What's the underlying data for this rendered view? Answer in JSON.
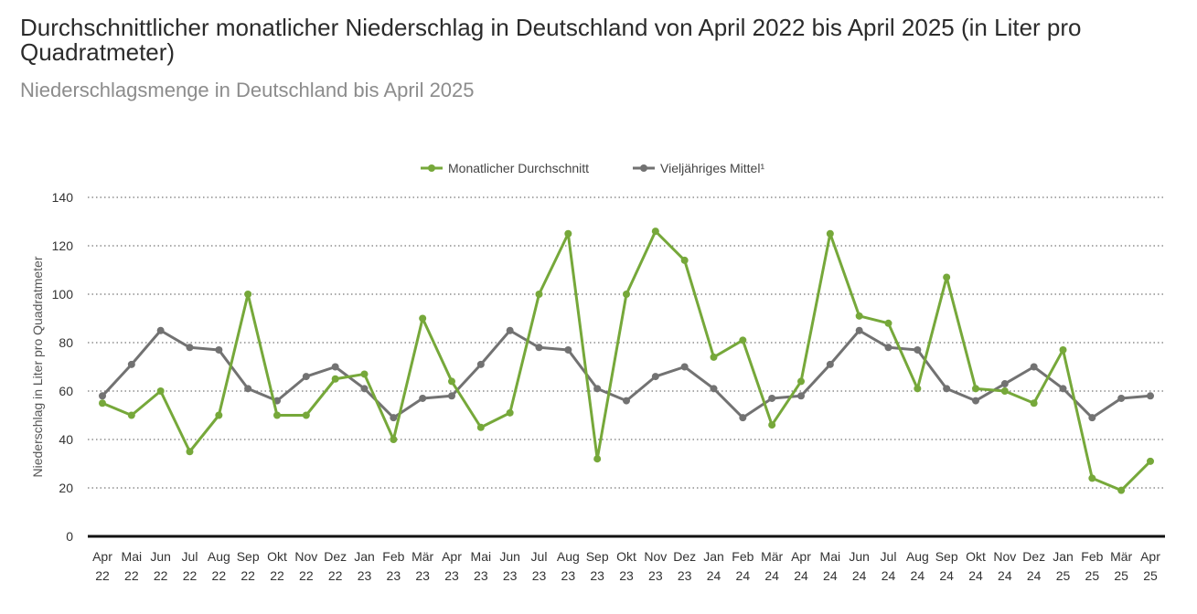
{
  "title": "Durchschnittlicher monatlicher Niederschlag in Deutschland von April 2022 bis April 2025 (in Liter pro Quadratmeter)",
  "subtitle": "Niederschlagsmenge in Deutschland bis April 2025",
  "chart_data": {
    "type": "line",
    "ylabel": "Niederschlag in Liter pro Quadratmeter",
    "ylim": [
      0,
      140
    ],
    "yticks": [
      0,
      20,
      40,
      60,
      80,
      100,
      120,
      140
    ],
    "grid": true,
    "legend_position": "top-center",
    "categories": [
      [
        "Apr",
        "22"
      ],
      [
        "Mai",
        "22"
      ],
      [
        "Jun",
        "22"
      ],
      [
        "Jul",
        "22"
      ],
      [
        "Aug",
        "22"
      ],
      [
        "Sep",
        "22"
      ],
      [
        "Okt",
        "22"
      ],
      [
        "Nov",
        "22"
      ],
      [
        "Dez",
        "22"
      ],
      [
        "Jan",
        "23"
      ],
      [
        "Feb",
        "23"
      ],
      [
        "Mär",
        "23"
      ],
      [
        "Apr",
        "23"
      ],
      [
        "Mai",
        "23"
      ],
      [
        "Jun",
        "23"
      ],
      [
        "Jul",
        "23"
      ],
      [
        "Aug",
        "23"
      ],
      [
        "Sep",
        "23"
      ],
      [
        "Okt",
        "23"
      ],
      [
        "Nov",
        "23"
      ],
      [
        "Dez",
        "23"
      ],
      [
        "Jan",
        "24"
      ],
      [
        "Feb",
        "24"
      ],
      [
        "Mär",
        "24"
      ],
      [
        "Apr",
        "24"
      ],
      [
        "Mai",
        "24"
      ],
      [
        "Jun",
        "24"
      ],
      [
        "Jul",
        "24"
      ],
      [
        "Aug",
        "24"
      ],
      [
        "Sep",
        "24"
      ],
      [
        "Okt",
        "24"
      ],
      [
        "Nov",
        "24"
      ],
      [
        "Dez",
        "24"
      ],
      [
        "Jan",
        "25"
      ],
      [
        "Feb",
        "25"
      ],
      [
        "Mär",
        "25"
      ],
      [
        "Apr",
        "25"
      ]
    ],
    "series": [
      {
        "name": "Monatlicher Durchschnitt",
        "color": "#76a83a",
        "values": [
          55,
          50,
          60,
          35,
          50,
          100,
          50,
          50,
          65,
          67,
          40,
          90,
          64,
          45,
          51,
          100,
          125,
          32,
          100,
          126,
          114,
          74,
          81,
          46,
          64,
          125,
          91,
          88,
          61,
          107,
          61,
          60,
          55,
          77,
          24,
          19,
          31
        ]
      },
      {
        "name": "Vieljähriges Mittel¹",
        "color": "#727272",
        "values": [
          58,
          71,
          85,
          78,
          77,
          61,
          56,
          66,
          70,
          61,
          49,
          57,
          58,
          71,
          85,
          78,
          77,
          61,
          56,
          66,
          70,
          61,
          49,
          57,
          58,
          71,
          85,
          78,
          77,
          61,
          56,
          63,
          70,
          61,
          49,
          57,
          58
        ]
      }
    ]
  }
}
